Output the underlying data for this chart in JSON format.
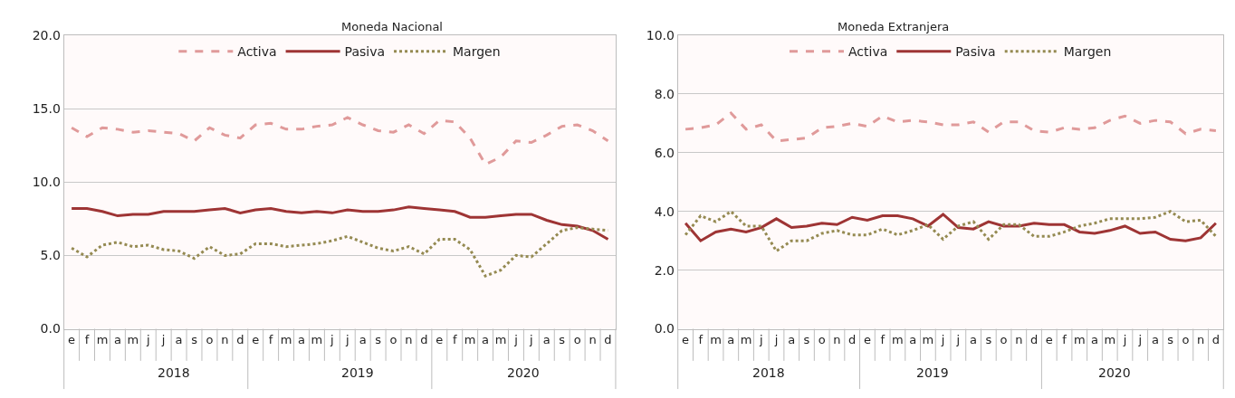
{
  "chart_data": [
    {
      "type": "line",
      "title": "Moneda Nacional",
      "categories": [
        "e",
        "f",
        "m",
        "a",
        "m",
        "j",
        "j",
        "a",
        "s",
        "o",
        "n",
        "d",
        "e",
        "f",
        "m",
        "a",
        "m",
        "j",
        "j",
        "a",
        "s",
        "o",
        "n",
        "d",
        "e",
        "f",
        "m",
        "a",
        "m",
        "j",
        "j",
        "a",
        "s",
        "o",
        "n",
        "d"
      ],
      "annotations": [
        "2018",
        "2019",
        "2020"
      ],
      "series": [
        {
          "name": "Activa",
          "color": "#e09a9a",
          "line_style": "dashed",
          "values": [
            13.7,
            13.1,
            13.7,
            13.6,
            13.4,
            13.5,
            13.4,
            13.3,
            12.8,
            13.7,
            13.2,
            13.0,
            13.9,
            14.0,
            13.6,
            13.6,
            13.8,
            13.9,
            14.4,
            13.9,
            13.5,
            13.4,
            13.9,
            13.3,
            14.2,
            14.1,
            13.0,
            11.2,
            11.7,
            12.8,
            12.7,
            13.2,
            13.8,
            13.9,
            13.5,
            12.8
          ]
        },
        {
          "name": "Pasiva",
          "color": "#9e3434",
          "line_style": "solid",
          "values": [
            8.2,
            8.2,
            8.0,
            7.7,
            7.8,
            7.8,
            8.0,
            8.0,
            8.0,
            8.1,
            8.2,
            7.9,
            8.1,
            8.2,
            8.0,
            7.9,
            8.0,
            7.9,
            8.1,
            8.0,
            8.0,
            8.1,
            8.3,
            8.2,
            8.1,
            8.0,
            7.6,
            7.6,
            7.7,
            7.8,
            7.8,
            7.4,
            7.1,
            7.0,
            6.7,
            6.1
          ]
        },
        {
          "name": "Margen",
          "color": "#958a52",
          "line_style": "dotted",
          "values": [
            5.5,
            4.9,
            5.7,
            5.9,
            5.6,
            5.7,
            5.4,
            5.3,
            4.8,
            5.6,
            5.0,
            5.1,
            5.8,
            5.8,
            5.6,
            5.7,
            5.8,
            6.0,
            6.3,
            5.9,
            5.5,
            5.3,
            5.6,
            5.1,
            6.1,
            6.1,
            5.4,
            3.6,
            4.0,
            5.0,
            4.9,
            5.8,
            6.7,
            6.9,
            6.8,
            6.7
          ]
        }
      ],
      "ylim": [
        0,
        20
      ],
      "yticks": [
        {
          "value": 0,
          "label": "0.0"
        },
        {
          "value": 5,
          "label": "5.0"
        },
        {
          "value": 10,
          "label": "10.0"
        },
        {
          "value": 15,
          "label": "15.0"
        },
        {
          "value": 20,
          "label": "20.0"
        }
      ],
      "grid": "y",
      "legend": "top",
      "marker": "none"
    },
    {
      "type": "line",
      "title": "Moneda Extranjera",
      "categories": [
        "e",
        "f",
        "m",
        "a",
        "m",
        "j",
        "j",
        "a",
        "s",
        "o",
        "n",
        "d",
        "e",
        "f",
        "m",
        "a",
        "m",
        "j",
        "j",
        "a",
        "s",
        "o",
        "n",
        "d",
        "e",
        "f",
        "m",
        "a",
        "m",
        "j",
        "j",
        "a",
        "s",
        "o",
        "n",
        "d"
      ],
      "annotations": [
        "2018",
        "2019",
        "2020"
      ],
      "series": [
        {
          "name": "Activa",
          "color": "#e09a9a",
          "line_style": "dashed",
          "values": [
            6.8,
            6.85,
            6.95,
            7.35,
            6.8,
            6.95,
            6.4,
            6.45,
            6.5,
            6.85,
            6.9,
            7.0,
            6.9,
            7.25,
            7.05,
            7.1,
            7.05,
            6.95,
            6.95,
            7.05,
            6.7,
            7.05,
            7.05,
            6.75,
            6.7,
            6.85,
            6.8,
            6.85,
            7.1,
            7.25,
            7.0,
            7.1,
            7.05,
            6.65,
            6.8,
            6.75
          ]
        },
        {
          "name": "Pasiva",
          "color": "#9e3434",
          "line_style": "solid",
          "values": [
            3.6,
            3.0,
            3.3,
            3.4,
            3.3,
            3.45,
            3.75,
            3.45,
            3.5,
            3.6,
            3.55,
            3.8,
            3.7,
            3.85,
            3.85,
            3.75,
            3.5,
            3.9,
            3.45,
            3.4,
            3.65,
            3.5,
            3.5,
            3.6,
            3.55,
            3.55,
            3.3,
            3.25,
            3.35,
            3.5,
            3.25,
            3.3,
            3.05,
            3.0,
            3.1,
            3.6
          ]
        },
        {
          "name": "Margen",
          "color": "#958a52",
          "line_style": "dotted",
          "values": [
            3.2,
            3.85,
            3.65,
            4.0,
            3.5,
            3.5,
            2.65,
            3.0,
            3.0,
            3.25,
            3.35,
            3.2,
            3.2,
            3.4,
            3.2,
            3.35,
            3.55,
            3.05,
            3.5,
            3.65,
            3.05,
            3.55,
            3.55,
            3.15,
            3.15,
            3.3,
            3.5,
            3.6,
            3.75,
            3.75,
            3.75,
            3.8,
            4.0,
            3.65,
            3.7,
            3.15
          ]
        }
      ],
      "ylim": [
        0,
        10
      ],
      "yticks": [
        {
          "value": 0,
          "label": "0.0"
        },
        {
          "value": 2,
          "label": "2.0"
        },
        {
          "value": 4,
          "label": "4.0"
        },
        {
          "value": 6,
          "label": "6.0"
        },
        {
          "value": 8,
          "label": "8.0"
        },
        {
          "value": 10,
          "label": "10.0"
        }
      ],
      "grid": "y",
      "legend": "top",
      "marker": "none"
    }
  ]
}
